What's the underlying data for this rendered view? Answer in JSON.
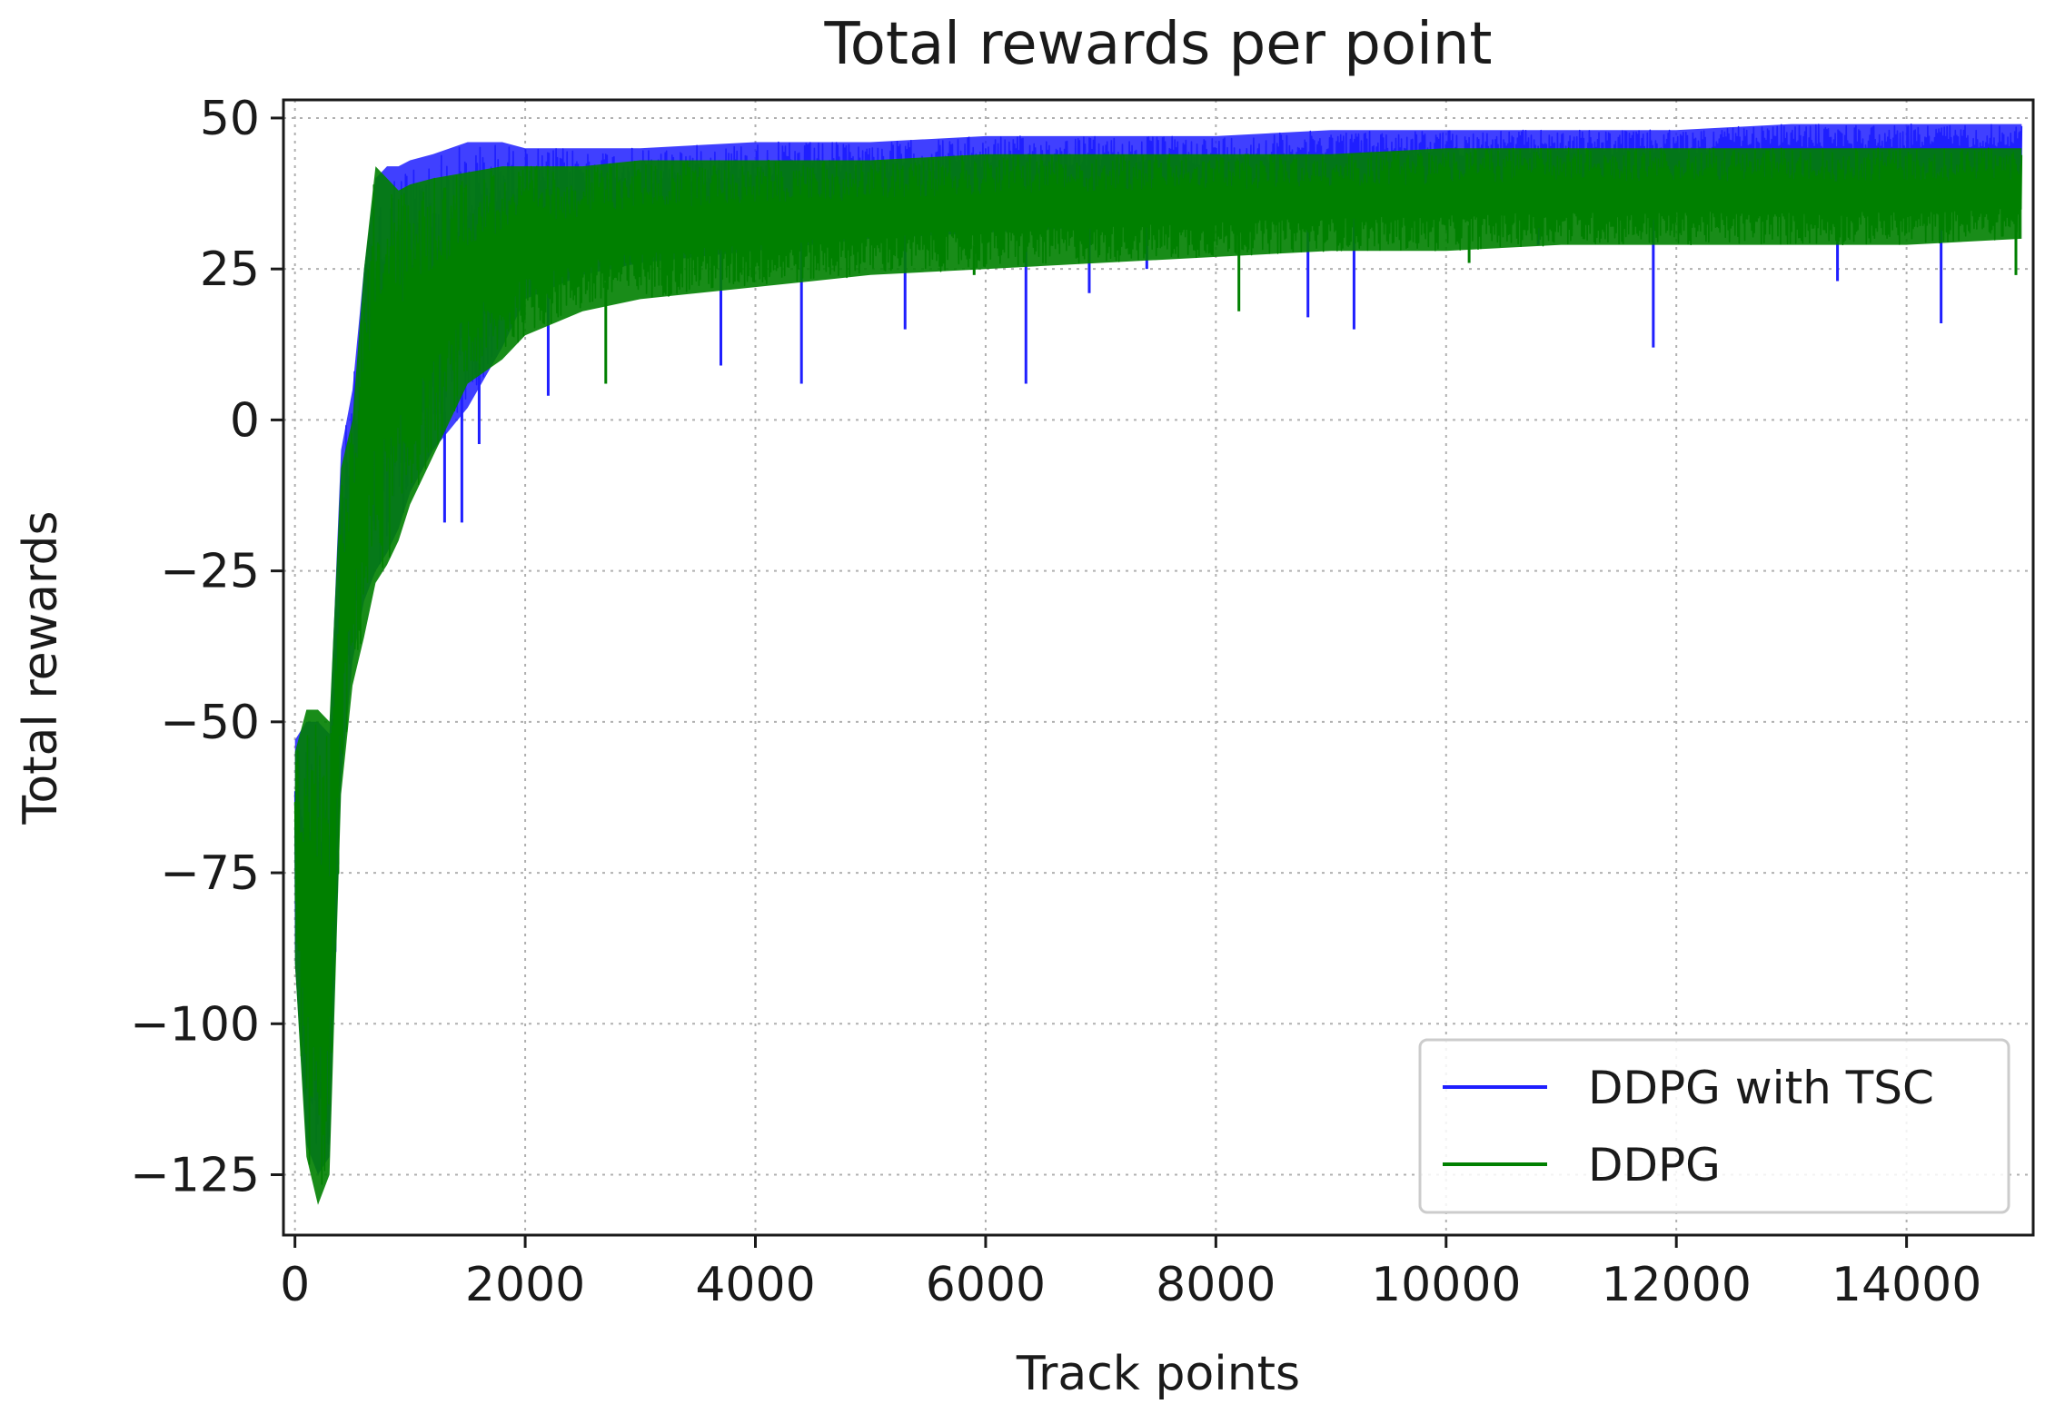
{
  "chart_data": {
    "type": "line",
    "title": "Total rewards per point",
    "xlabel": "Track points",
    "ylabel": "Total rewards",
    "xlim": [
      -100,
      15100
    ],
    "ylim": [
      -135,
      53
    ],
    "xticks": [
      0,
      2000,
      4000,
      6000,
      8000,
      10000,
      12000,
      14000
    ],
    "xtick_labels": [
      "0",
      "2000",
      "4000",
      "6000",
      "8000",
      "10000",
      "12000",
      "14000"
    ],
    "yticks": [
      50,
      25,
      0,
      -25,
      -50,
      -75,
      -100,
      -125
    ],
    "ytick_labels": [
      "50",
      "25",
      "0",
      "−25",
      "−50",
      "−75",
      "−100",
      "−125"
    ],
    "grid": true,
    "legend_position": "lower-right",
    "series": [
      {
        "name": "DDPG with TSC",
        "color": "#1f1fff",
        "envelope": {
          "x": [
            0,
            100,
            200,
            300,
            400,
            500,
            600,
            700,
            800,
            900,
            1000,
            1200,
            1500,
            1800,
            2000,
            2500,
            3000,
            4000,
            5000,
            6000,
            7000,
            8000,
            9000,
            10000,
            11000,
            12000,
            13000,
            14000,
            15000
          ],
          "upper": [
            -53,
            -50,
            -50,
            -52,
            -5,
            5,
            25,
            40,
            42,
            42,
            43,
            44,
            46,
            46,
            45,
            45,
            45,
            46,
            46,
            47,
            47,
            47,
            48,
            48,
            48,
            48,
            49,
            49,
            49
          ],
          "lower": [
            -90,
            -120,
            -125,
            -122,
            -60,
            -40,
            -30,
            -25,
            -22,
            -18,
            -12,
            -5,
            2,
            12,
            20,
            24,
            26,
            28,
            30,
            31,
            32,
            33,
            34,
            35,
            36,
            36,
            37,
            37,
            38
          ]
        },
        "spikes": [
          [
            1300,
            -17
          ],
          [
            1450,
            -17
          ],
          [
            1600,
            -4
          ],
          [
            2200,
            4
          ],
          [
            3700,
            9
          ],
          [
            4400,
            6
          ],
          [
            5300,
            15
          ],
          [
            6350,
            6
          ],
          [
            6900,
            21
          ],
          [
            7400,
            25
          ],
          [
            8800,
            17
          ],
          [
            9200,
            15
          ],
          [
            10800,
            29
          ],
          [
            11800,
            12
          ],
          [
            13400,
            23
          ],
          [
            14300,
            16
          ],
          [
            14950,
            27
          ]
        ]
      },
      {
        "name": "DDPG",
        "color": "#008000",
        "envelope": {
          "x": [
            0,
            100,
            200,
            300,
            400,
            500,
            600,
            700,
            800,
            900,
            1000,
            1200,
            1500,
            1800,
            2000,
            2500,
            3000,
            4000,
            5000,
            6000,
            7000,
            8000,
            9000,
            10000,
            11000,
            12000,
            13000,
            14000,
            15000
          ],
          "upper": [
            -55,
            -48,
            -48,
            -50,
            -8,
            0,
            25,
            42,
            40,
            38,
            39,
            40,
            41,
            42,
            42,
            42,
            43,
            43,
            43,
            44,
            44,
            44,
            44,
            45,
            45,
            45,
            45,
            45,
            45
          ],
          "lower": [
            -90,
            -122,
            -130,
            -125,
            -62,
            -44,
            -36,
            -27,
            -24,
            -20,
            -14,
            -6,
            6,
            10,
            14,
            18,
            20,
            22,
            24,
            25,
            26,
            27,
            28,
            28,
            29,
            29,
            29,
            29,
            30
          ]
        },
        "spikes": [
          [
            2700,
            6
          ],
          [
            8200,
            18
          ],
          [
            14950,
            24
          ],
          [
            10200,
            26
          ],
          [
            5900,
            24
          ]
        ]
      }
    ]
  }
}
